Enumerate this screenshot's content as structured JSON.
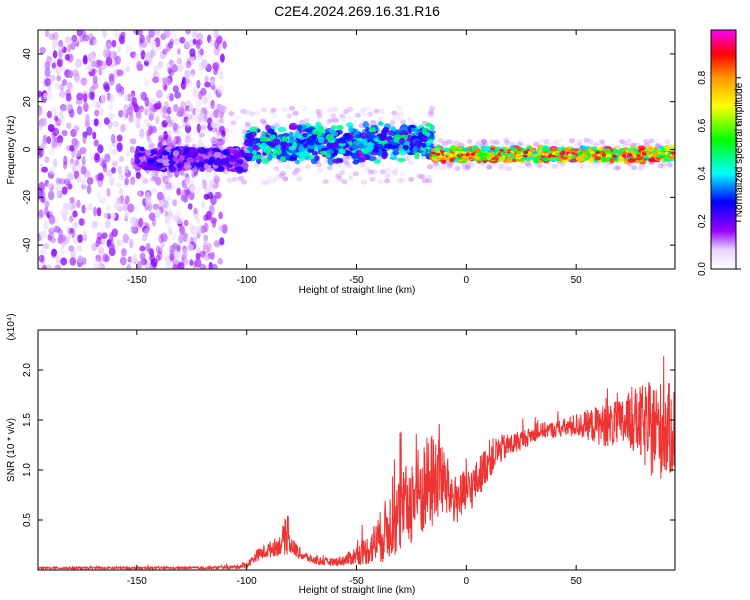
{
  "figure": {
    "title": "C2E4.2024.269.16.31.R16"
  },
  "chart_data": [
    {
      "type": "heatmap",
      "xlabel": "Height of straight line (km)",
      "ylabel": "Frequency (Hz)",
      "xlim": [
        -195,
        95
      ],
      "ylim": [
        -50,
        50
      ],
      "x_ticks": [
        -150,
        -100,
        -50,
        0,
        50
      ],
      "y_ticks": [
        -40,
        -20,
        0,
        20,
        40
      ],
      "grid": false,
      "colorbar": {
        "label": "Normalized spectral amplitude",
        "range": [
          0,
          1
        ],
        "ticks": [
          "0.0",
          "0.2",
          "0.4",
          "0.6",
          "0.8"
        ],
        "colormap": [
          "#ffffff",
          "#9900ff",
          "#0000ff",
          "#00ffff",
          "#00ff00",
          "#ffff00",
          "#ff9900",
          "#ff0000",
          "#ff00ff"
        ]
      },
      "regions": [
        {
          "x_range": [
            -195,
            -110
          ],
          "frequency_spread": [
            -50,
            50
          ],
          "amplitude": 0.08,
          "note_free": true
        },
        {
          "x_range": [
            -150,
            -100
          ],
          "frequency_center": -4,
          "frequency_halfwidth": 5,
          "amplitude": 0.2
        },
        {
          "x_range": [
            -100,
            -15
          ],
          "frequency_center": 2,
          "frequency_halfwidth": 8,
          "amplitude": 0.35
        },
        {
          "x_range": [
            -15,
            95
          ],
          "frequency_center": -2,
          "frequency_halfwidth": 3,
          "amplitude": 0.7
        }
      ]
    },
    {
      "type": "line",
      "xlabel": "Height of straight line (km)",
      "ylabel": "SNR (10 * v/v)",
      "y_multiplier": "(x10⁴)",
      "xlim": [
        -195,
        95
      ],
      "ylim": [
        0,
        2.4
      ],
      "x_ticks": [
        -150,
        -100,
        -50,
        0,
        50
      ],
      "y_ticks": [
        0.5,
        1.0,
        1.5,
        2.0
      ],
      "y_tick_labels": [
        "0.5",
        "1.0",
        "1.5",
        "2.0"
      ],
      "grid": false,
      "color": "#ee3333",
      "series": [
        {
          "x": [
            -195,
            -150,
            -120,
            -105,
            -100,
            -95,
            -90,
            -85,
            -82,
            -80,
            -75,
            -70,
            -65,
            -60,
            -55,
            -50,
            -45,
            -40,
            -35,
            -30,
            -25,
            -20,
            -15,
            -12,
            -10,
            -5,
            0,
            5,
            10,
            15,
            20,
            25,
            30,
            35,
            40,
            45,
            50,
            55,
            60,
            65,
            70,
            75,
            80,
            85,
            90,
            95
          ],
          "y": [
            0.02,
            0.02,
            0.02,
            0.03,
            0.05,
            0.15,
            0.2,
            0.25,
            0.35,
            0.25,
            0.15,
            0.1,
            0.08,
            0.08,
            0.1,
            0.15,
            0.2,
            0.3,
            0.45,
            0.55,
            0.7,
            0.8,
            0.9,
            1.0,
            0.85,
            0.7,
            0.75,
            0.9,
            1.1,
            1.2,
            1.25,
            1.3,
            1.35,
            1.4,
            1.4,
            1.42,
            1.45,
            1.45,
            1.45,
            1.45,
            1.45,
            1.5,
            1.45,
            1.4,
            1.4,
            1.4
          ],
          "noise": [
            0.01,
            0.01,
            0.01,
            0.02,
            0.03,
            0.06,
            0.08,
            0.1,
            0.2,
            0.1,
            0.05,
            0.04,
            0.04,
            0.04,
            0.06,
            0.1,
            0.15,
            0.25,
            0.35,
            0.4,
            0.45,
            0.5,
            0.5,
            0.5,
            0.35,
            0.25,
            0.25,
            0.2,
            0.2,
            0.15,
            0.12,
            0.1,
            0.08,
            0.08,
            0.08,
            0.1,
            0.12,
            0.15,
            0.2,
            0.22,
            0.25,
            0.3,
            0.4,
            0.5,
            0.5,
            0.45
          ]
        }
      ]
    }
  ]
}
